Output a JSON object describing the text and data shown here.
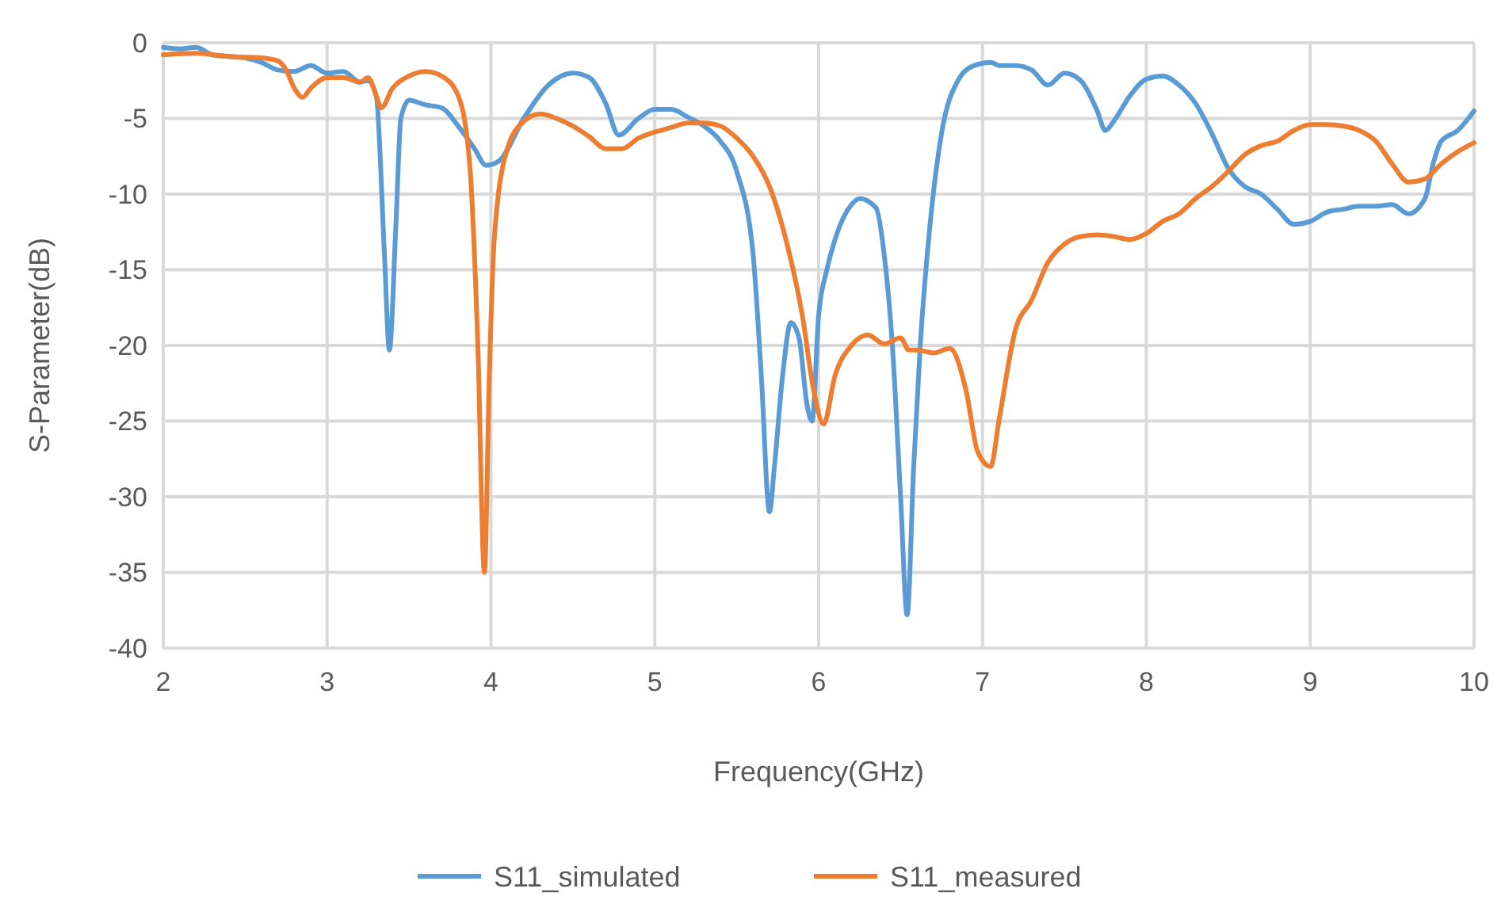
{
  "chart_data": {
    "type": "line",
    "xlabel": "Frequency(GHz)",
    "ylabel": "S-Parameter(dB)",
    "xlim": [
      2,
      10
    ],
    "xticks": [
      2,
      3,
      4,
      5,
      6,
      7,
      8,
      9,
      10
    ],
    "ylim": [
      -40,
      0
    ],
    "yticks": [
      -40,
      -35,
      -30,
      -25,
      -20,
      -15,
      -10,
      -5,
      0
    ],
    "grid": true,
    "legend": "bottom",
    "marker": "none",
    "line_style": "solid",
    "series": [
      {
        "name": "S11_simulated",
        "color": "#5b9bd5",
        "x": [
          2.0,
          2.1,
          2.2,
          2.3,
          2.4,
          2.5,
          2.6,
          2.7,
          2.8,
          2.9,
          3.0,
          3.1,
          3.2,
          3.25,
          3.3,
          3.35,
          3.38,
          3.42,
          3.45,
          3.5,
          3.6,
          3.7,
          3.8,
          3.9,
          3.97,
          4.05,
          4.2,
          4.35,
          4.5,
          4.6,
          4.7,
          4.78,
          4.9,
          5.0,
          5.1,
          5.2,
          5.3,
          5.4,
          5.5,
          5.6,
          5.65,
          5.7,
          5.73,
          5.78,
          5.83,
          5.88,
          5.93,
          5.96,
          6.0,
          6.05,
          6.1,
          6.2,
          6.25,
          6.35,
          6.4,
          6.45,
          6.5,
          6.54,
          6.58,
          6.62,
          6.68,
          6.75,
          6.85,
          6.95,
          7.05,
          7.1,
          7.2,
          7.3,
          7.4,
          7.5,
          7.6,
          7.7,
          7.75,
          7.8,
          7.9,
          8.0,
          8.1,
          8.2,
          8.3,
          8.4,
          8.5,
          8.6,
          8.7,
          8.8,
          8.9,
          9.0,
          9.1,
          9.2,
          9.3,
          9.4,
          9.5,
          9.6,
          9.7,
          9.75,
          9.8,
          9.9,
          10.0
        ],
        "values": [
          -0.3,
          -0.4,
          -0.3,
          -0.8,
          -0.9,
          -1.0,
          -1.3,
          -1.8,
          -1.9,
          -1.5,
          -2.0,
          -1.9,
          -2.6,
          -2.5,
          -3.5,
          -14,
          -20.3,
          -12,
          -5,
          -3.8,
          -4.1,
          -4.3,
          -5.5,
          -7,
          -8.1,
          -7.8,
          -5,
          -2.8,
          -2.0,
          -2.3,
          -4,
          -6.1,
          -5,
          -4.4,
          -4.4,
          -4.9,
          -5.5,
          -6.5,
          -8.5,
          -14,
          -22,
          -31,
          -28,
          -22,
          -18.5,
          -19.5,
          -24,
          -25,
          -18,
          -15,
          -13,
          -10.7,
          -10.3,
          -10.9,
          -14,
          -20,
          -30,
          -37.8,
          -28,
          -20,
          -12,
          -6,
          -2.5,
          -1.5,
          -1.3,
          -1.5,
          -1.5,
          -1.8,
          -2.8,
          -2.0,
          -2.5,
          -4.5,
          -5.8,
          -5.2,
          -3.5,
          -2.4,
          -2.2,
          -2.8,
          -4,
          -6,
          -8.3,
          -9.5,
          -10,
          -11,
          -12,
          -11.8,
          -11.2,
          -11.0,
          -10.8,
          -10.8,
          -10.7,
          -11.3,
          -10.3,
          -8,
          -6.5,
          -5.8,
          -4.5
        ]
      },
      {
        "name": "S11_measured",
        "color": "#ed7d31",
        "x": [
          2.0,
          2.2,
          2.4,
          2.6,
          2.7,
          2.75,
          2.8,
          2.85,
          2.9,
          3.0,
          3.1,
          3.2,
          3.25,
          3.3,
          3.33,
          3.4,
          3.5,
          3.6,
          3.7,
          3.8,
          3.87,
          3.92,
          3.96,
          3.99,
          4.02,
          4.1,
          4.2,
          4.3,
          4.4,
          4.5,
          4.6,
          4.7,
          4.8,
          4.9,
          5.0,
          5.1,
          5.2,
          5.3,
          5.4,
          5.5,
          5.6,
          5.7,
          5.8,
          5.9,
          5.97,
          6.03,
          6.1,
          6.2,
          6.3,
          6.4,
          6.5,
          6.55,
          6.6,
          6.65,
          6.7,
          6.8,
          6.9,
          6.97,
          7.05,
          7.1,
          7.2,
          7.3,
          7.4,
          7.5,
          7.6,
          7.7,
          7.8,
          7.9,
          8.0,
          8.1,
          8.2,
          8.3,
          8.4,
          8.5,
          8.6,
          8.7,
          8.8,
          8.9,
          9.0,
          9.1,
          9.2,
          9.3,
          9.4,
          9.5,
          9.6,
          9.7,
          9.8,
          9.9,
          10.0
        ],
        "values": [
          -0.8,
          -0.7,
          -0.9,
          -1.0,
          -1.2,
          -1.8,
          -3.0,
          -3.6,
          -3,
          -2.3,
          -2.3,
          -2.6,
          -2.3,
          -3.5,
          -4.3,
          -3,
          -2.2,
          -1.9,
          -2.2,
          -3.5,
          -8,
          -20,
          -35,
          -22,
          -13,
          -7,
          -5.2,
          -4.7,
          -5.0,
          -5.5,
          -6.2,
          -7.0,
          -7.0,
          -6.3,
          -5.9,
          -5.6,
          -5.3,
          -5.3,
          -5.5,
          -6.3,
          -7.5,
          -9.5,
          -13,
          -18,
          -23,
          -25.2,
          -22,
          -20,
          -19.3,
          -19.9,
          -19.5,
          -20.3,
          -20.3,
          -20.4,
          -20.5,
          -20.2,
          -23,
          -27,
          -28,
          -25,
          -19,
          -17,
          -14.5,
          -13.3,
          -12.8,
          -12.7,
          -12.8,
          -13,
          -12.6,
          -11.8,
          -11.3,
          -10.3,
          -9.5,
          -8.5,
          -7.4,
          -6.8,
          -6.5,
          -5.8,
          -5.4,
          -5.4,
          -5.5,
          -5.8,
          -6.5,
          -8,
          -9.2,
          -9,
          -8,
          -7.2,
          -6.6
        ]
      }
    ]
  }
}
